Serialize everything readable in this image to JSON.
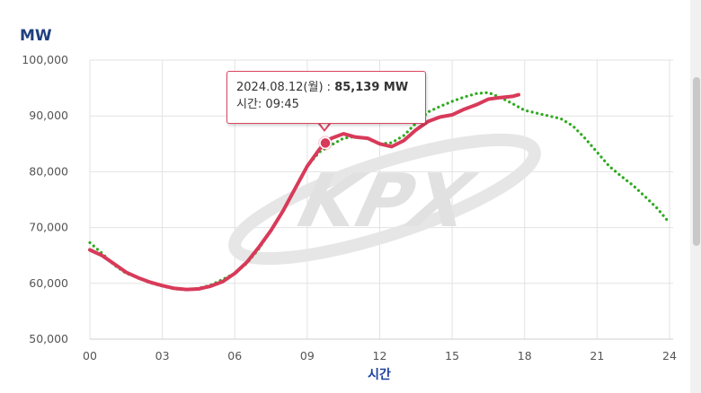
{
  "unit_label": "MW",
  "colors": {
    "actual": "#d83a5a",
    "forecast": "#2eaa1f",
    "grid": "#e2e2e2",
    "axis_title": "#1c3fa0",
    "watermark": "#e6e6e6"
  },
  "watermark": {
    "text": "KPX",
    "icon": "kpx-logo-watermark"
  },
  "tooltip": {
    "date": "2024.08.12(월)",
    "separator": " : ",
    "value": "85,139 MW",
    "time_label": "시간: 09:45"
  },
  "chart_data": {
    "type": "line",
    "title": "",
    "xlabel": "시간",
    "ylabel": "MW",
    "xlim": [
      0,
      24
    ],
    "ylim": [
      50000,
      100000
    ],
    "grid": true,
    "x_ticks": [
      "00",
      "03",
      "06",
      "09",
      "12",
      "15",
      "18",
      "21",
      "24"
    ],
    "y_ticks": [
      "50,000",
      "60,000",
      "70,000",
      "80,000",
      "90,000",
      "100,000"
    ],
    "highlight_point": {
      "x": 9.75,
      "y": 85139
    },
    "series": [
      {
        "style": "solid",
        "color": "#d83a5a",
        "points": [
          [
            0,
            66000
          ],
          [
            0.5,
            65000
          ],
          [
            1,
            63500
          ],
          [
            1.5,
            62000
          ],
          [
            2,
            61000
          ],
          [
            2.5,
            60200
          ],
          [
            3,
            59600
          ],
          [
            3.5,
            59100
          ],
          [
            4,
            58900
          ],
          [
            4.5,
            59000
          ],
          [
            5,
            59500
          ],
          [
            5.5,
            60300
          ],
          [
            6,
            61800
          ],
          [
            6.5,
            63800
          ],
          [
            7,
            66500
          ],
          [
            7.5,
            69500
          ],
          [
            8,
            73000
          ],
          [
            8.5,
            77000
          ],
          [
            9,
            81000
          ],
          [
            9.5,
            84000
          ],
          [
            9.75,
            85139
          ],
          [
            10,
            86000
          ],
          [
            10.5,
            86800
          ],
          [
            11,
            86200
          ],
          [
            11.5,
            86000
          ],
          [
            12,
            85000
          ],
          [
            12.5,
            84500
          ],
          [
            13,
            85600
          ],
          [
            13.5,
            87500
          ],
          [
            14,
            89000
          ],
          [
            14.5,
            89800
          ],
          [
            15,
            90200
          ],
          [
            15.5,
            91200
          ],
          [
            16,
            92000
          ],
          [
            16.5,
            93000
          ],
          [
            17,
            93300
          ],
          [
            17.5,
            93500
          ],
          [
            17.75,
            93800
          ]
        ]
      },
      {
        "style": "dotted",
        "color": "#2eaa1f",
        "points": [
          [
            0,
            67300
          ],
          [
            0.5,
            65400
          ],
          [
            1,
            63300
          ],
          [
            1.5,
            61800
          ],
          [
            2,
            61000
          ],
          [
            2.5,
            60100
          ],
          [
            3,
            59500
          ],
          [
            3.5,
            59000
          ],
          [
            4,
            58900
          ],
          [
            4.5,
            59100
          ],
          [
            5,
            59700
          ],
          [
            5.5,
            60700
          ],
          [
            6,
            61800
          ],
          [
            6.5,
            63600
          ],
          [
            7,
            66200
          ],
          [
            7.5,
            69500
          ],
          [
            8,
            73000
          ],
          [
            8.5,
            77000
          ],
          [
            9,
            81000
          ],
          [
            9.5,
            83500
          ],
          [
            10,
            84800
          ],
          [
            10.5,
            86000
          ],
          [
            11,
            86300
          ],
          [
            11.5,
            85900
          ],
          [
            12,
            85000
          ],
          [
            12.5,
            85200
          ],
          [
            13,
            86500
          ],
          [
            13.5,
            88700
          ],
          [
            14,
            90700
          ],
          [
            14.5,
            91700
          ],
          [
            15,
            92600
          ],
          [
            15.5,
            93400
          ],
          [
            16,
            94000
          ],
          [
            16.5,
            94200
          ],
          [
            17,
            93300
          ],
          [
            17.5,
            92200
          ],
          [
            18,
            91000
          ],
          [
            18.5,
            90500
          ],
          [
            19,
            90000
          ],
          [
            19.5,
            89500
          ],
          [
            20,
            88200
          ],
          [
            20.5,
            86000
          ],
          [
            21,
            83500
          ],
          [
            21.5,
            81000
          ],
          [
            22,
            79200
          ],
          [
            22.5,
            77500
          ],
          [
            23,
            75500
          ],
          [
            23.5,
            73400
          ],
          [
            24,
            70800
          ]
        ]
      }
    ]
  }
}
